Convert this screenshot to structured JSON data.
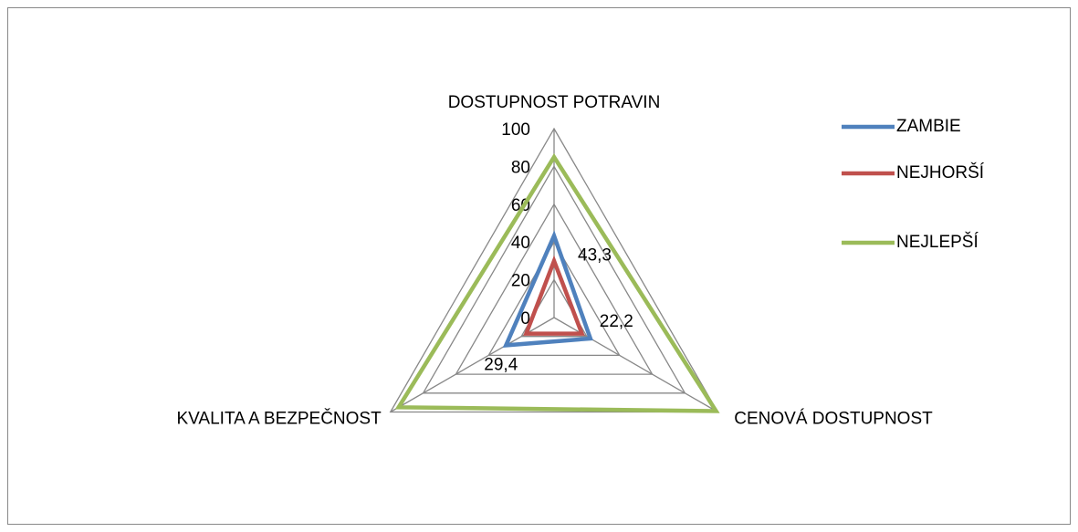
{
  "chart_data": {
    "type": "radar",
    "categories": [
      "DOSTUPNOST POTRAVIN",
      "CENOVÁ DOSTUPNOST",
      "KVALITA A BEZPEČNOST"
    ],
    "rlim": [
      0,
      100
    ],
    "rticks": [
      0,
      20,
      40,
      60,
      80,
      100
    ],
    "grid": true,
    "legend": "right",
    "series": [
      {
        "name": "ZAMBIE",
        "color": "#4f81bd",
        "values": [
          43.3,
          22.2,
          29.4
        ],
        "value_labels": [
          "43,3",
          "22,2",
          "29,4"
        ]
      },
      {
        "name": "NEJHORŠÍ",
        "color": "#c0504d",
        "values": [
          30,
          17,
          17
        ]
      },
      {
        "name": "NEJLEPŠÍ",
        "color": "#9bbb59",
        "values": [
          85,
          99,
          95
        ]
      }
    ]
  }
}
